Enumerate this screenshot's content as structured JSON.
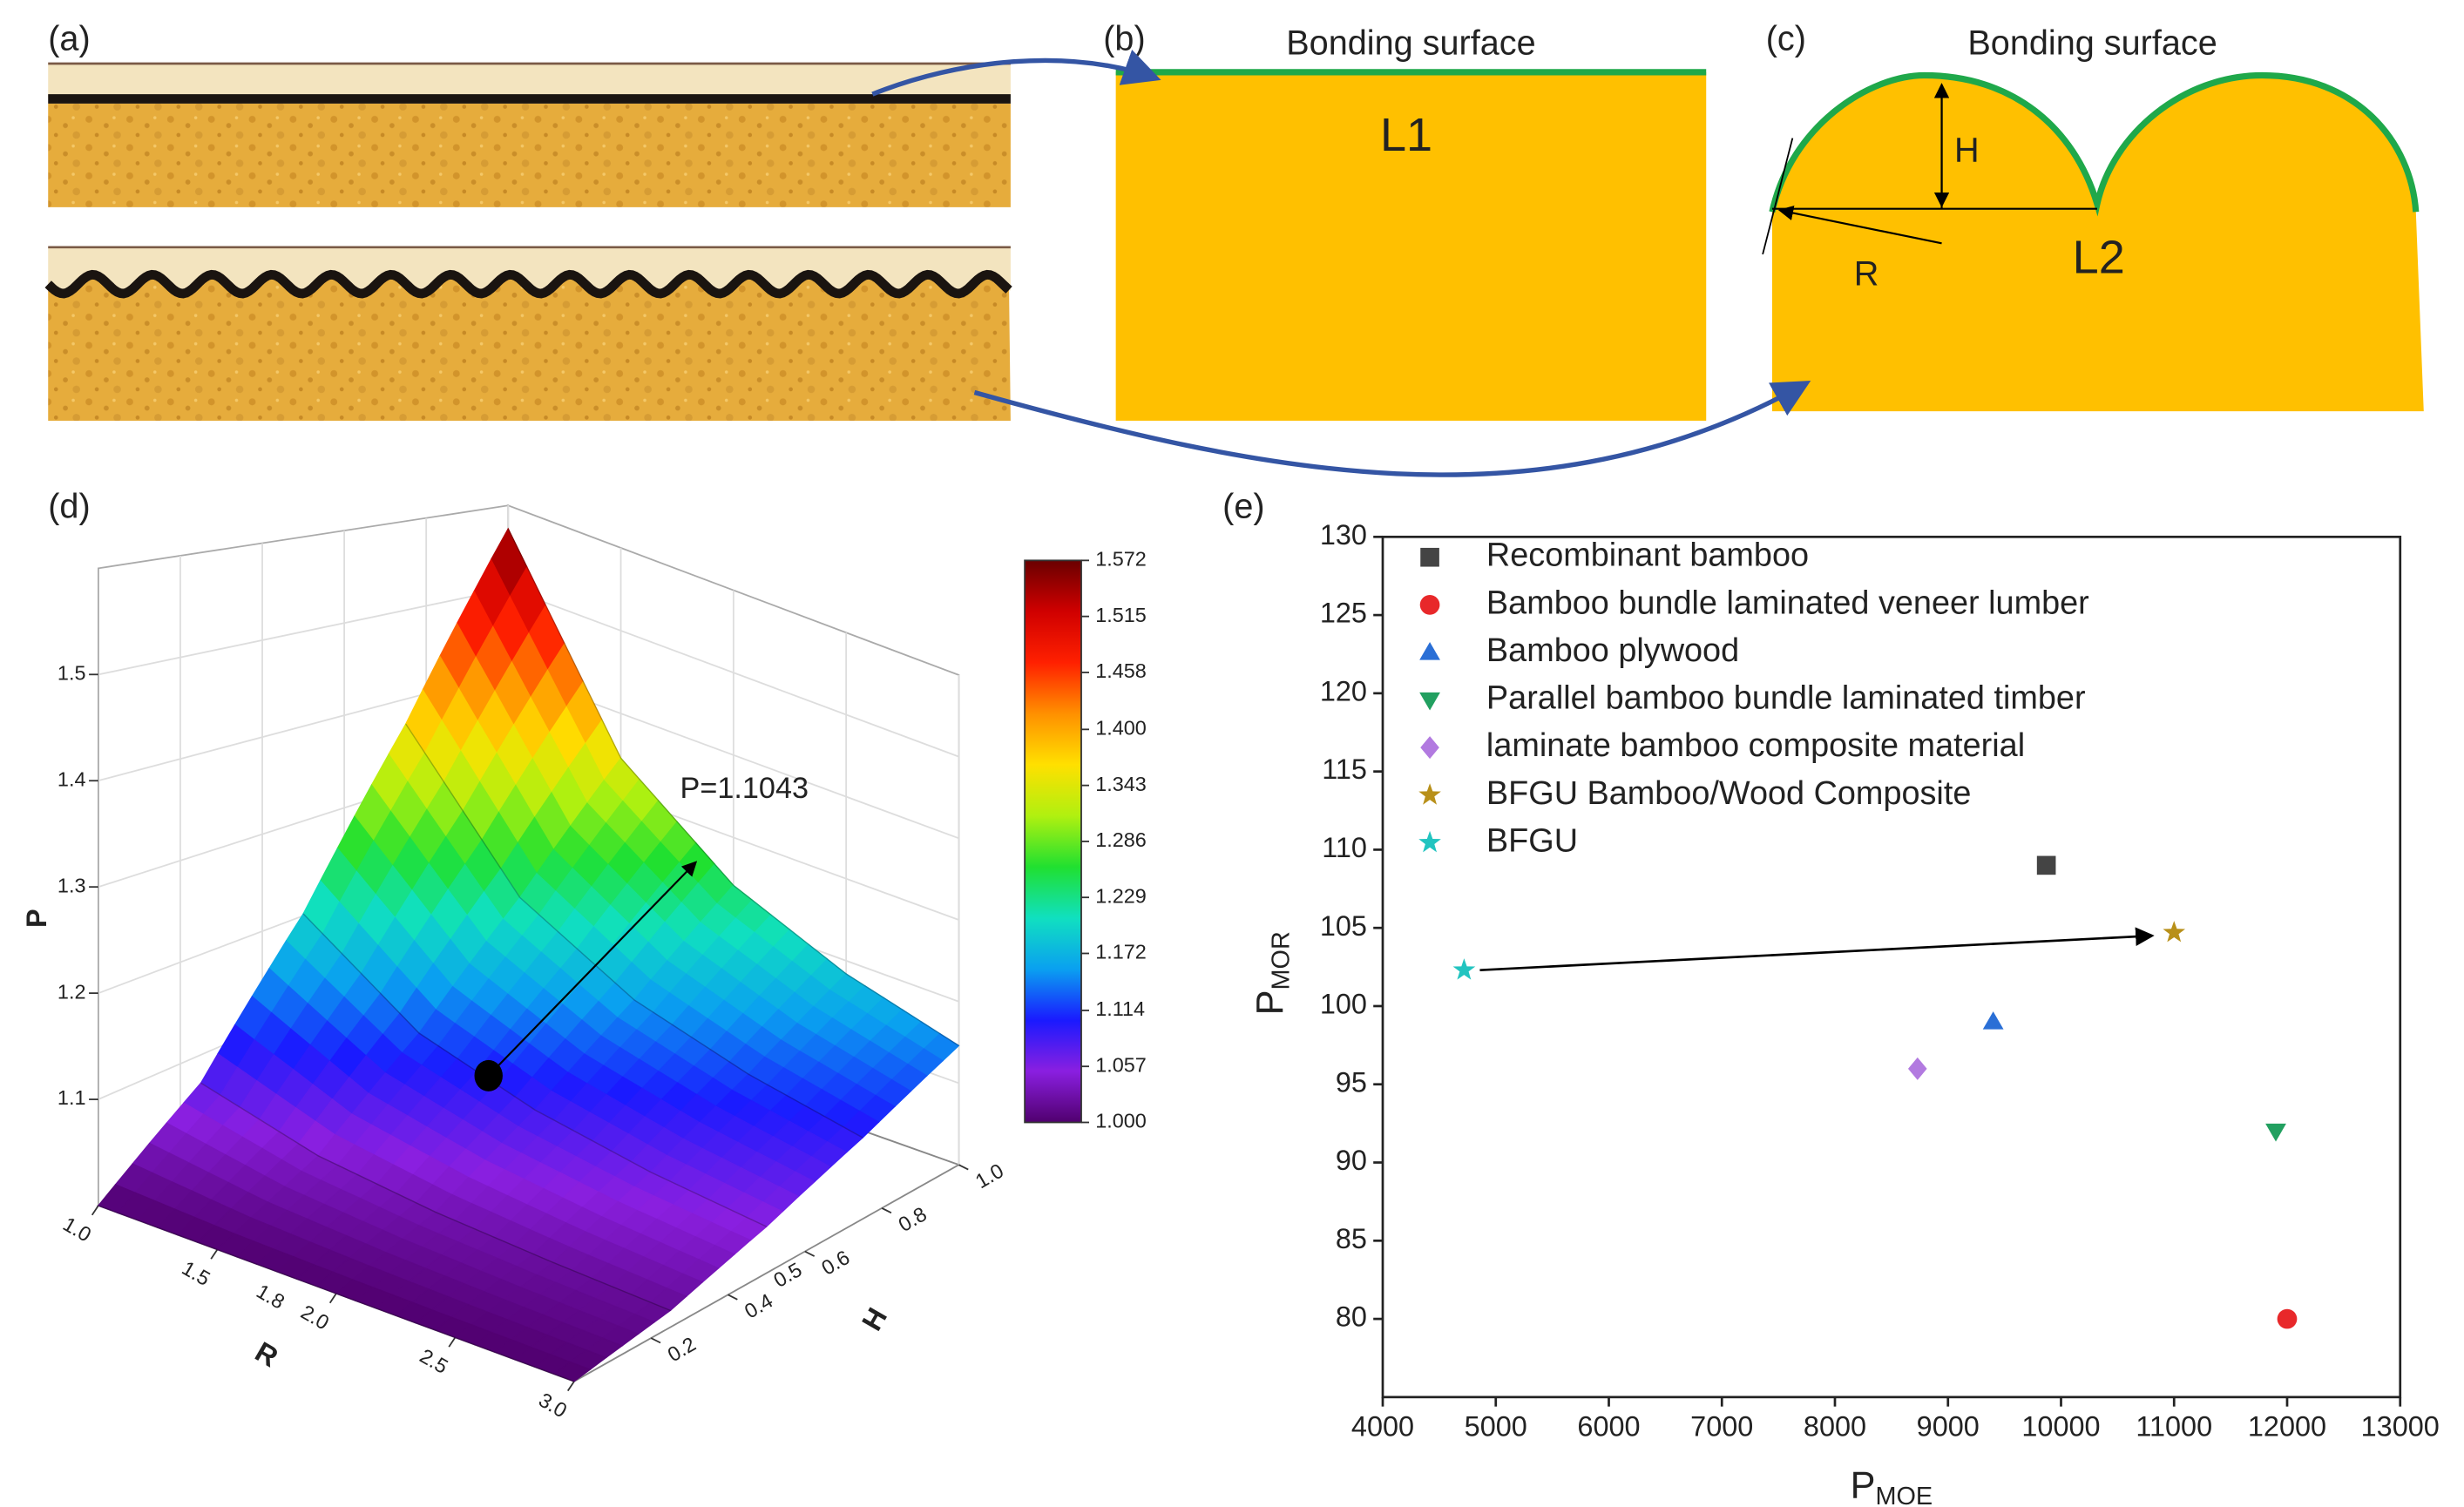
{
  "panels": {
    "a": {
      "label": "(a)"
    },
    "b": {
      "label": "(b)",
      "surface": "Bonding surface",
      "layer": "L1"
    },
    "c": {
      "label": "(c)",
      "surface": "Bonding surface",
      "layer": "L2",
      "height": "H",
      "radius": "R"
    },
    "d": {
      "label": "(d)"
    },
    "e": {
      "label": "(e)"
    }
  },
  "chart_data": [
    {
      "type": "surface",
      "R": [
        1,
        1.5,
        2,
        2.5,
        3
      ],
      "H": [
        0,
        0.25,
        0.5,
        0.75,
        1
      ],
      "P": [
        [
          1.0,
          1.0,
          1.0,
          1.0,
          1.0
        ],
        [
          1.072,
          1.043,
          1.03,
          1.023,
          1.018
        ],
        [
          1.202,
          1.122,
          1.086,
          1.065,
          1.052
        ],
        [
          1.372,
          1.225,
          1.157,
          1.12,
          1.095
        ],
        [
          1.572,
          1.346,
          1.242,
          1.184,
          1.146
        ]
      ],
      "x_label": "R",
      "y_label": "H",
      "z_label": "P",
      "xlim": [
        1,
        3
      ],
      "xticks": [
        {
          "value": 1,
          "label": "1.0"
        },
        1.5,
        {
          "value": 2,
          "label": "2.0"
        },
        2.5,
        {
          "value": 3,
          "label": "3.0"
        }
      ],
      "ylim": [
        0,
        1
      ],
      "yticks": [
        0.2,
        0.4,
        0.6,
        0.8,
        {
          "value": 1,
          "label": "1.0"
        }
      ],
      "zlim": [
        1,
        1.6
      ],
      "zticks": [
        1.1,
        1.2,
        1.3,
        1.4,
        1.5
      ],
      "clim": [
        1,
        1.572
      ],
      "cticks": [
        {
          "value": 1,
          "label": "1.000"
        },
        1.057,
        1.114,
        1.172,
        1.229,
        1.286,
        1.343,
        {
          "value": 1.4,
          "label": "1.400"
        },
        1.458,
        1.515,
        1.572
      ],
      "colormap": [
        "#50006e",
        "#8a1fe0",
        "#1a1aff",
        "#0aa0f0",
        "#10e0c0",
        "#20e030",
        "#b0f010",
        "#ffe000",
        "#ff9000",
        "#ff2000",
        "#d00000",
        "#6a0000"
      ],
      "grid": true,
      "annotation": "P=1.1043",
      "point": {
        "R": 1.8,
        "H": 0.5,
        "P": 1.1043
      }
    },
    {
      "type": "scatter",
      "x_label": "P",
      "x_label_sub": "MOE",
      "y_label": "P",
      "y_label_sub": "MOR",
      "xlim": [
        4000,
        13000
      ],
      "xticks": [
        4000,
        5000,
        6000,
        7000,
        8000,
        9000,
        10000,
        11000,
        12000,
        13000
      ],
      "ylim": [
        75,
        130
      ],
      "yticks": [
        80,
        85,
        90,
        95,
        100,
        105,
        110,
        115,
        120,
        125,
        130
      ],
      "legend": "top-left",
      "series": [
        {
          "name": "Recombinant bamboo",
          "color": "#444444",
          "marker": "square",
          "x": [
            9870
          ],
          "values": [
            109
          ]
        },
        {
          "name": "Bamboo bundle laminated veneer lumber",
          "color": "#e8282a",
          "marker": "circle",
          "x": [
            12000
          ],
          "values": [
            80
          ]
        },
        {
          "name": "Bamboo plywood",
          "color": "#2a6fd6",
          "marker": "triangle",
          "x": [
            9400
          ],
          "values": [
            99
          ]
        },
        {
          "name": "Parallel bamboo bundle laminated timber",
          "color": "#22a060",
          "marker": "triangle-down",
          "x": [
            11900
          ],
          "values": [
            92
          ]
        },
        {
          "name": "laminate bamboo composite material",
          "color": "#b27ae0",
          "marker": "diamond",
          "x": [
            8730
          ],
          "values": [
            96
          ]
        },
        {
          "name": "BFGU Bamboo/Wood Composite",
          "color": "#b8901a",
          "marker": "star",
          "x": [
            11000
          ],
          "values": [
            104.7
          ]
        },
        {
          "name": "BFGU",
          "color": "#22c4c0",
          "marker": "star",
          "x": [
            4720
          ],
          "values": [
            102.3
          ]
        }
      ]
    }
  ]
}
